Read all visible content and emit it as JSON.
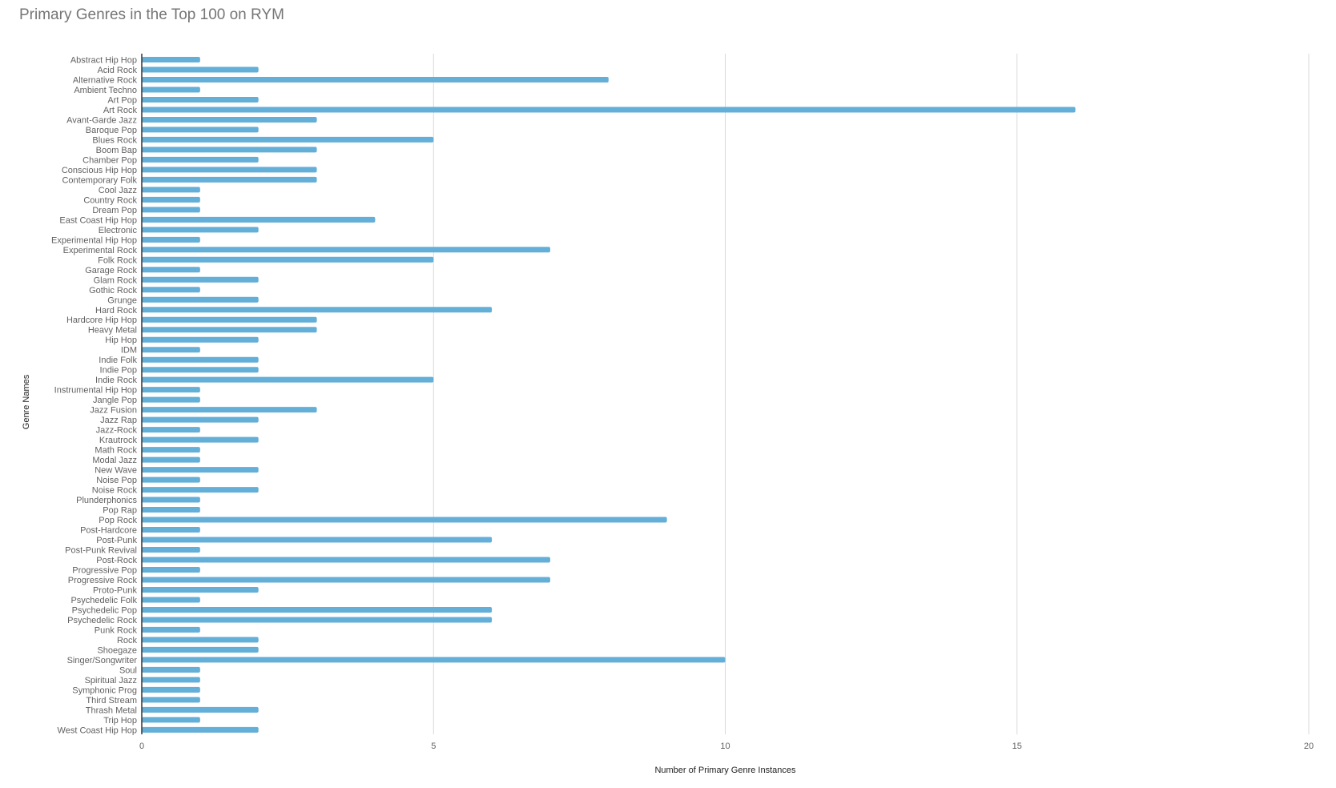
{
  "chart_data": {
    "type": "bar",
    "orientation": "horizontal",
    "title": "Primary Genres in the Top 100 on RYM",
    "xlabel": "Number of Primary Genre Instances",
    "ylabel": "Genre Names",
    "xlim": [
      0,
      20
    ],
    "xticks": [
      0,
      5,
      10,
      15,
      20
    ],
    "grid": true,
    "legend": "none",
    "bar_color": "#64afd8",
    "categories": [
      "Abstract Hip Hop",
      "Acid Rock",
      "Alternative Rock",
      "Ambient Techno",
      "Art Pop",
      "Art Rock",
      "Avant-Garde Jazz",
      "Baroque Pop",
      "Blues Rock",
      "Boom Bap",
      "Chamber Pop",
      "Conscious Hip Hop",
      "Contemporary Folk",
      "Cool Jazz",
      "Country Rock",
      "Dream Pop",
      "East Coast Hip Hop",
      "Electronic",
      "Experimental Hip Hop",
      "Experimental Rock",
      "Folk Rock",
      "Garage Rock",
      "Glam Rock",
      "Gothic Rock",
      "Grunge",
      "Hard Rock",
      "Hardcore Hip Hop",
      "Heavy Metal",
      "Hip Hop",
      "IDM",
      "Indie Folk",
      "Indie Pop",
      "Indie Rock",
      "Instrumental Hip Hop",
      "Jangle Pop",
      "Jazz Fusion",
      "Jazz Rap",
      "Jazz-Rock",
      "Krautrock",
      "Math Rock",
      "Modal Jazz",
      "New Wave",
      "Noise Pop",
      "Noise Rock",
      "Plunderphonics",
      "Pop Rap",
      "Pop Rock",
      "Post-Hardcore",
      "Post-Punk",
      "Post-Punk Revival",
      "Post-Rock",
      "Progressive Pop",
      "Progressive Rock",
      "Proto-Punk",
      "Psychedelic Folk",
      "Psychedelic Pop",
      "Psychedelic Rock",
      "Punk Rock",
      "Rock",
      "Shoegaze",
      "Singer/Songwriter",
      "Soul",
      "Spiritual Jazz",
      "Symphonic Prog",
      "Third Stream",
      "Thrash Metal",
      "Trip Hop",
      "West Coast Hip Hop"
    ],
    "values": [
      1,
      2,
      8,
      1,
      2,
      16,
      3,
      2,
      5,
      3,
      2,
      3,
      3,
      1,
      1,
      1,
      4,
      2,
      1,
      7,
      5,
      1,
      2,
      1,
      2,
      6,
      3,
      3,
      2,
      1,
      2,
      2,
      5,
      1,
      1,
      3,
      2,
      1,
      2,
      1,
      1,
      2,
      1,
      2,
      1,
      1,
      9,
      1,
      6,
      1,
      7,
      1,
      7,
      2,
      1,
      6,
      6,
      1,
      2,
      2,
      10,
      1,
      1,
      1,
      1,
      2,
      1,
      2
    ]
  }
}
